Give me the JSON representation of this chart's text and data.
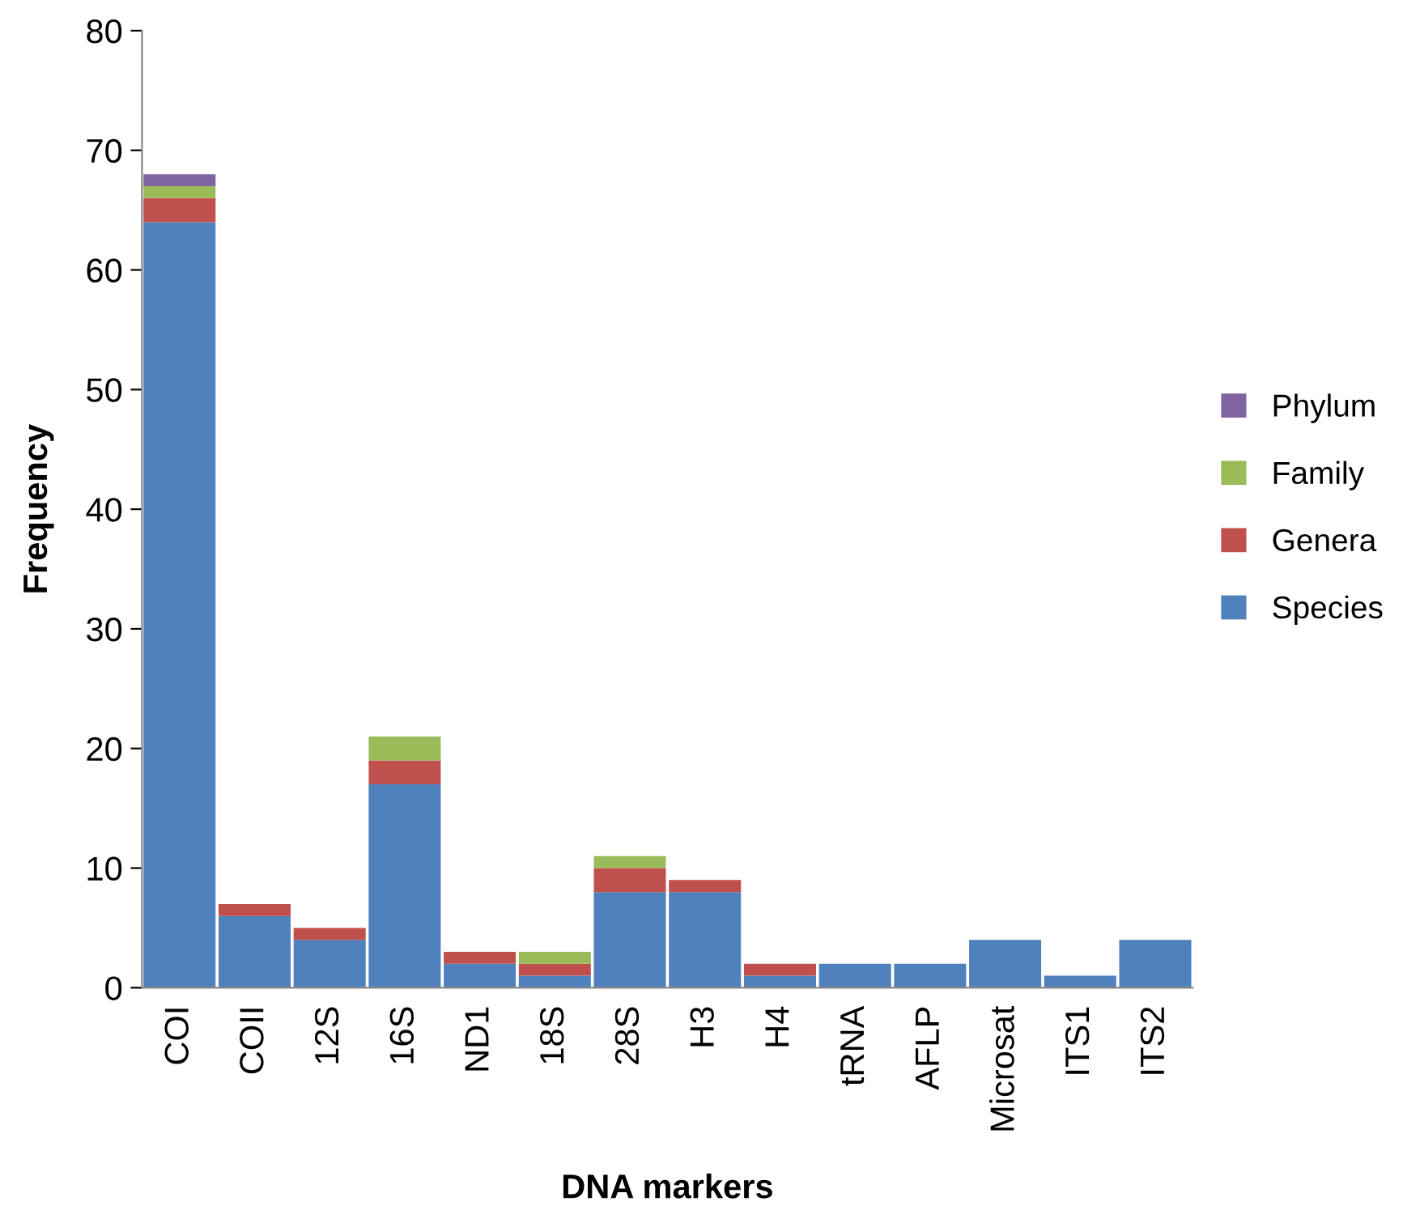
{
  "chart_data": {
    "type": "bar",
    "xlabel": "DNA markers",
    "ylabel": "Frequency",
    "categories": [
      "COI",
      "COII",
      "12S",
      "16S",
      "ND1",
      "18S",
      "28S",
      "H3",
      "H4",
      "tRNA",
      "AFLP",
      "Microsat",
      "ITS1",
      "ITS2"
    ],
    "stacked": true,
    "series": [
      {
        "name": "Species",
        "color": "#4f81bd",
        "values": [
          64,
          6,
          4,
          17,
          2,
          1,
          8,
          8,
          1,
          2,
          2,
          4,
          1,
          4
        ]
      },
      {
        "name": "Genera",
        "color": "#c0504d",
        "values": [
          2,
          1,
          1,
          2,
          1,
          1,
          2,
          1,
          1,
          0,
          0,
          0,
          0,
          0
        ]
      },
      {
        "name": "Family",
        "color": "#9bbb59",
        "values": [
          1,
          0,
          0,
          2,
          0,
          1,
          1,
          0,
          0,
          0,
          0,
          0,
          0,
          0
        ]
      },
      {
        "name": "Phylum",
        "color": "#8064a2",
        "values": [
          1,
          0,
          0,
          0,
          0,
          0,
          0,
          0,
          0,
          0,
          0,
          0,
          0,
          0
        ]
      }
    ],
    "ylim": [
      0,
      80
    ],
    "yticks": [
      0,
      10,
      20,
      30,
      40,
      50,
      60,
      70,
      80
    ],
    "grid": false,
    "legend": "right"
  }
}
